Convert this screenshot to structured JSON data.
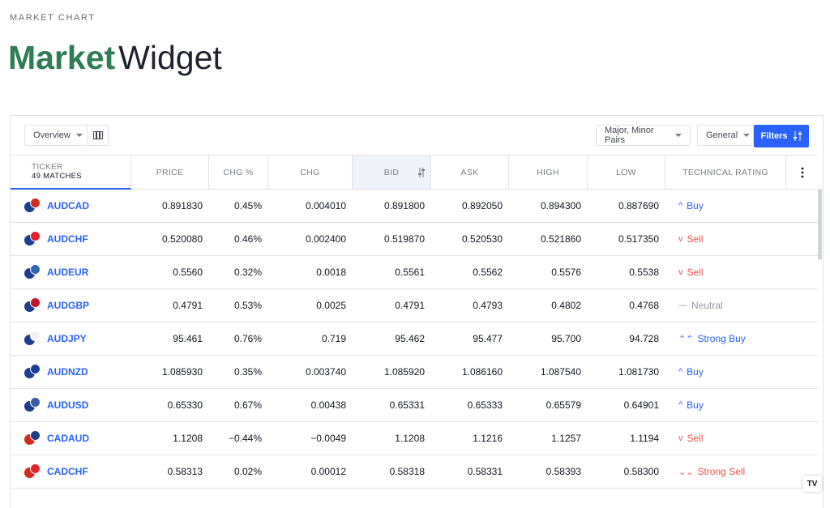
{
  "page": {
    "eyebrow": "MARKET CHART",
    "title_strong": "Market",
    "title_light": "Widget"
  },
  "toolbar": {
    "overview_label": "Overview",
    "pairs_label": "Major, Minor Pairs",
    "general_label": "General",
    "filters_label": "Filters"
  },
  "columns": {
    "ticker": "TICKER",
    "matches": "49 MATCHES",
    "price": "PRICE",
    "chg_pct": "CHG %",
    "chg": "CHG",
    "bid": "BID",
    "ask": "ASK",
    "high": "HIGH",
    "low": "LOW",
    "rating": "TECHNICAL RATING"
  },
  "rows": [
    {
      "symbol": "AUDCAD",
      "price": "0.891830",
      "chg_pct": "0.45%",
      "chg": "0.004010",
      "bid": "0.891800",
      "ask": "0.892050",
      "high": "0.894300",
      "low": "0.887690",
      "rating": "Buy",
      "dir": "pos",
      "rating_class": "buy",
      "glyph": "^",
      "flag_a": "#1d3f8f",
      "flag_b": "#d52b1e"
    },
    {
      "symbol": "AUDCHF",
      "price": "0.520080",
      "chg_pct": "0.46%",
      "chg": "0.002400",
      "bid": "0.519870",
      "ask": "0.520530",
      "high": "0.521860",
      "low": "0.517350",
      "rating": "Sell",
      "dir": "pos",
      "rating_class": "sell",
      "glyph": "v",
      "flag_a": "#1d3f8f",
      "flag_b": "#e4202c"
    },
    {
      "symbol": "AUDEUR",
      "price": "0.5560",
      "chg_pct": "0.32%",
      "chg": "0.0018",
      "bid": "0.5561",
      "ask": "0.5562",
      "high": "0.5576",
      "low": "0.5538",
      "rating": "Sell",
      "dir": "pos",
      "rating_class": "sell",
      "glyph": "v",
      "flag_a": "#1d3f8f",
      "flag_b": "#2f64b5"
    },
    {
      "symbol": "AUDGBP",
      "price": "0.4791",
      "chg_pct": "0.53%",
      "chg": "0.0025",
      "bid": "0.4791",
      "ask": "0.4793",
      "high": "0.4802",
      "low": "0.4768",
      "rating": "Neutral",
      "dir": "pos",
      "rating_class": "neutral",
      "glyph": "—",
      "flag_a": "#1d3f8f",
      "flag_b": "#c8102e"
    },
    {
      "symbol": "AUDJPY",
      "price": "95.461",
      "chg_pct": "0.76%",
      "chg": "0.719",
      "bid": "95.462",
      "ask": "95.477",
      "high": "95.700",
      "low": "94.728",
      "rating": "Strong Buy",
      "dir": "pos",
      "rating_class": "buy",
      "glyph": "⌃⌃",
      "flag_a": "#1d3f8f",
      "flag_b": "#f2f2f2"
    },
    {
      "symbol": "AUDNZD",
      "price": "1.085930",
      "chg_pct": "0.35%",
      "chg": "0.003740",
      "bid": "1.085920",
      "ask": "1.086160",
      "high": "1.087540",
      "low": "1.081730",
      "rating": "Buy",
      "dir": "pos",
      "rating_class": "buy",
      "glyph": "^",
      "flag_a": "#1d3f8f",
      "flag_b": "#1d3f8f"
    },
    {
      "symbol": "AUDUSD",
      "price": "0.65330",
      "chg_pct": "0.67%",
      "chg": "0.00438",
      "bid": "0.65331",
      "ask": "0.65333",
      "high": "0.65579",
      "low": "0.64901",
      "rating": "Buy",
      "dir": "pos",
      "rating_class": "buy",
      "glyph": "^",
      "flag_a": "#1d3f8f",
      "flag_b": "#3c5aa8"
    },
    {
      "symbol": "CADAUD",
      "price": "1.1208",
      "chg_pct": "−0.44%",
      "chg": "−0.0049",
      "bid": "1.1208",
      "ask": "1.1216",
      "high": "1.1257",
      "low": "1.1194",
      "rating": "Sell",
      "dir": "neg",
      "rating_class": "sell",
      "glyph": "v",
      "flag_a": "#d52b1e",
      "flag_b": "#1d3f8f"
    },
    {
      "symbol": "CADCHF",
      "price": "0.58313",
      "chg_pct": "0.02%",
      "chg": "0.00012",
      "bid": "0.58318",
      "ask": "0.58331",
      "high": "0.58393",
      "low": "0.58300",
      "rating": "Strong Sell",
      "dir": "pos",
      "rating_class": "sell",
      "glyph": "⌄⌄",
      "flag_a": "#d52b1e",
      "flag_b": "#e4202c"
    }
  ],
  "colors": {
    "accent": "#2962ff",
    "positive": "#26a69a",
    "negative": "#ef5350",
    "brand_green": "#2e7d54"
  },
  "logo_text": "TV"
}
